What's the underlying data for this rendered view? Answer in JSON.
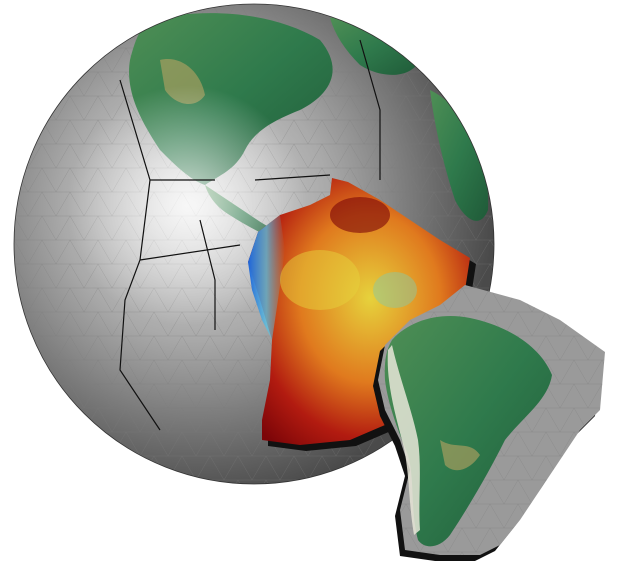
{
  "scene": {
    "subject": "globe-with-extracted-south-america-tomography-block",
    "colors": {
      "background": "#ffffff",
      "ocean_light": "#d2d2d2",
      "ocean_dark": "#4a4a4a",
      "land_green": "#2f7a4c",
      "land_dark": "#1f5a38",
      "land_tan": "#b9a463",
      "plate_boundary": "#111111",
      "mesh_line": "#7a7a7a",
      "anomaly_low": "#1f64d8",
      "anomaly_mid": "#e6d23c",
      "anomaly_high": "#7c0508"
    },
    "icons": [
      "globe-icon",
      "continent-block-icon",
      "mantle-slab-icon"
    ]
  }
}
